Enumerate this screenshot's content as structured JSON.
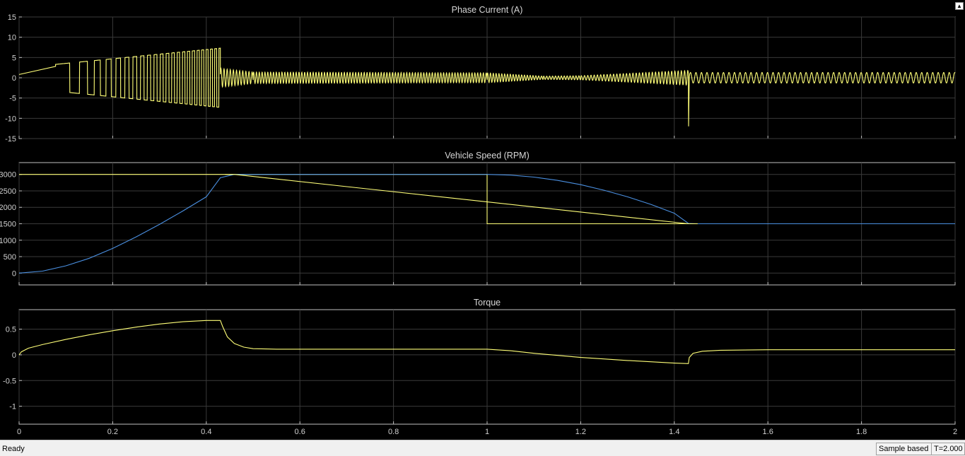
{
  "window": {
    "restore_icon": "restore-window-icon"
  },
  "status": {
    "text": "Ready",
    "mode": "Sample based",
    "time": "T=2.000"
  },
  "colors": {
    "background": "#000000",
    "grid": "#3a3a3a",
    "axis_text": "#d0d0d0",
    "title_text": "#d7d7d7",
    "yellow": "#ffff78",
    "blue": "#4a8fe0"
  },
  "chart_data": [
    {
      "type": "line",
      "title": "Phase Current (A)",
      "xlim": [
        0,
        2
      ],
      "ylim": [
        -15,
        15
      ],
      "xticks": [
        0,
        0.2,
        0.4,
        0.6,
        0.8,
        1,
        1.2,
        1.4,
        1.6,
        1.8,
        2
      ],
      "yticks": [
        15,
        10,
        5,
        0,
        -5,
        -10,
        -15
      ],
      "ytick_labels": [
        "15",
        "10",
        "5",
        "0",
        "-5",
        "-10",
        "-15"
      ],
      "show_xtick_labels": false,
      "grid": true,
      "series": [
        {
          "color": "yellow",
          "kind": "oscillation",
          "segments": [
            {
              "t0": 0.0,
              "t1": 0.078,
              "shape": "ramp",
              "from": 0.8,
              "to": 2.8
            },
            {
              "t0": 0.078,
              "t1": 0.43,
              "shape": "square",
              "freq_from": 12,
              "freq_to": 115,
              "amp_from": 3.3,
              "amp_to": 7.3
            },
            {
              "t0": 0.43,
              "t1": 0.5,
              "shape": "decay",
              "freq": 150,
              "amp_from": 2.3,
              "amp_to": 1.4
            },
            {
              "t0": 0.5,
              "t1": 1.0,
              "shape": "sine",
              "freq": 165,
              "amp_from": 1.4,
              "amp_to": 1.2
            },
            {
              "t0": 1.0,
              "t1": 1.12,
              "shape": "sine",
              "freq": 165,
              "amp_from": 1.2,
              "amp_to": 0.4
            },
            {
              "t0": 1.12,
              "t1": 1.2,
              "shape": "sine",
              "freq": 160,
              "amp_from": 0.4,
              "amp_to": 0.5
            },
            {
              "t0": 1.2,
              "t1": 1.43,
              "shape": "sine",
              "freq": 145,
              "amp_from": 0.5,
              "amp_to": 1.8
            },
            {
              "t0": 1.43,
              "t1": 1.432,
              "shape": "spike",
              "to": -12
            },
            {
              "t0": 1.432,
              "t1": 2.0,
              "shape": "sine",
              "freq": 85,
              "amp_from": 1.3,
              "amp_to": 1.3
            }
          ]
        }
      ]
    },
    {
      "type": "line",
      "title": "Vehicle Speed (RPM)",
      "xlim": [
        0,
        2
      ],
      "ylim": [
        -360,
        3360
      ],
      "xticks": [
        0,
        0.2,
        0.4,
        0.6,
        0.8,
        1,
        1.2,
        1.4,
        1.6,
        1.8,
        2
      ],
      "yticks": [
        3000,
        2500,
        2000,
        1500,
        1000,
        500,
        0
      ],
      "ytick_labels": [
        "3000",
        "2500",
        "2000",
        "1500",
        "1000",
        "500",
        "0"
      ],
      "show_xtick_labels": false,
      "grid": true,
      "series": [
        {
          "color": "yellow",
          "x": [
            0,
            1,
            1,
            2
          ],
          "y": [
            3000,
            3000,
            1500,
            1500
          ]
        },
        {
          "color": "blue",
          "x": [
            0,
            0.05,
            0.1,
            0.15,
            0.2,
            0.25,
            0.3,
            0.35,
            0.4,
            0.43,
            0.46,
            0.6,
            0.8,
            1.0,
            1.05,
            1.1,
            1.15,
            1.2,
            1.25,
            1.3,
            1.35,
            1.4,
            1.43,
            1.45,
            1.6,
            1.8,
            2.0
          ],
          "y": [
            0,
            60,
            220,
            450,
            750,
            1100,
            1480,
            1890,
            2320,
            2900,
            3000,
            3000,
            3000,
            3000,
            2980,
            2920,
            2820,
            2690,
            2520,
            2320,
            2090,
            1820,
            1510,
            1500,
            1500,
            1500,
            1500
          ]
        },
        {
          "color": "yellow",
          "x": [
            0.44,
            0.46,
            1.43,
            1.45
          ],
          "y": [
            3000,
            3000,
            1500,
            1500
          ]
        }
      ]
    },
    {
      "type": "line",
      "title": "Torque",
      "xlim": [
        0,
        2
      ],
      "ylim": [
        -1.35,
        0.88
      ],
      "xticks": [
        0,
        0.2,
        0.4,
        0.6,
        0.8,
        1,
        1.2,
        1.4,
        1.6,
        1.8,
        2
      ],
      "xtick_labels": [
        "0",
        "0.2",
        "0.4",
        "0.6",
        "0.8",
        "1",
        "1.2",
        "1.4",
        "1.6",
        "1.8",
        "2"
      ],
      "yticks": [
        0.5,
        0,
        -0.5,
        -1
      ],
      "ytick_labels": [
        "0.5",
        "0",
        "-0.5",
        "-1"
      ],
      "show_xtick_labels": true,
      "grid": true,
      "series": [
        {
          "color": "yellow",
          "x": [
            0,
            0.005,
            0.02,
            0.05,
            0.1,
            0.15,
            0.2,
            0.25,
            0.3,
            0.35,
            0.4,
            0.43,
            0.435,
            0.445,
            0.46,
            0.48,
            0.5,
            0.55,
            0.7,
            0.85,
            1.0,
            1.05,
            1.1,
            1.2,
            1.3,
            1.4,
            1.43,
            1.432,
            1.44,
            1.46,
            1.5,
            1.6,
            1.8,
            2.0
          ],
          "y": [
            0,
            0.06,
            0.13,
            0.2,
            0.3,
            0.39,
            0.47,
            0.54,
            0.6,
            0.645,
            0.67,
            0.67,
            0.55,
            0.35,
            0.22,
            0.15,
            0.12,
            0.11,
            0.11,
            0.11,
            0.11,
            0.08,
            0.03,
            -0.05,
            -0.11,
            -0.16,
            -0.17,
            -0.05,
            0.03,
            0.07,
            0.09,
            0.1,
            0.1,
            0.1
          ]
        }
      ]
    }
  ]
}
